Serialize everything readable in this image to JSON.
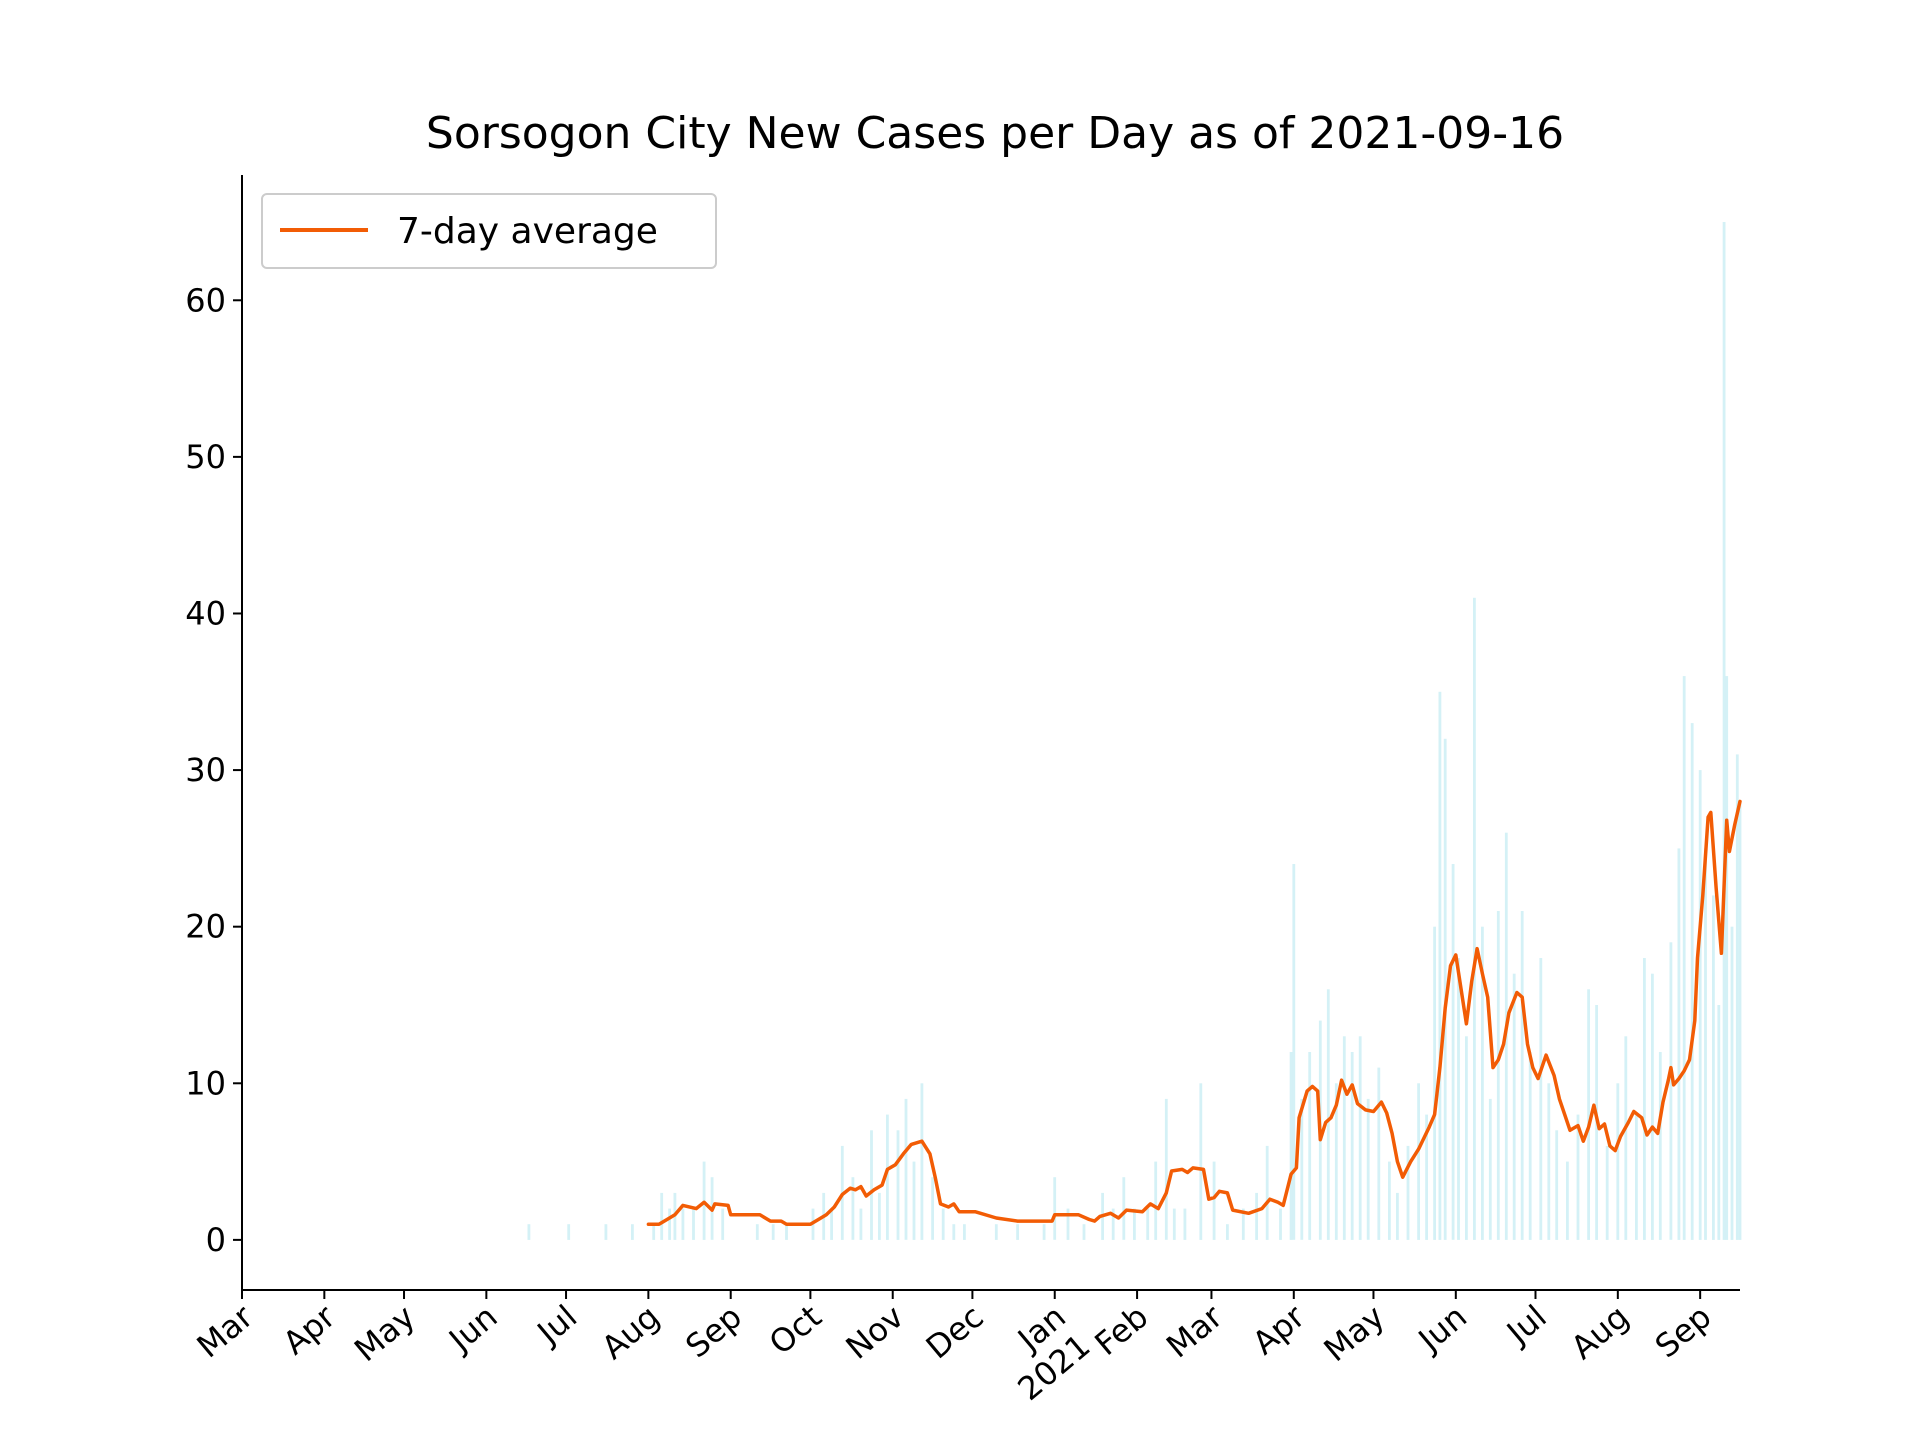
{
  "chart_data": {
    "type": "bar",
    "title": "Sorsogon City New Cases per Day as of 2021-09-16",
    "xlabel": "",
    "ylabel": "",
    "x_range": [
      "2020-03-01",
      "2021-09-16"
    ],
    "ylim": [
      -3.2,
      68
    ],
    "y_ticks": [
      0,
      10,
      20,
      30,
      40,
      50,
      60
    ],
    "x_ticks": [
      {
        "date": "2020-03-01",
        "label": "Mar"
      },
      {
        "date": "2020-04-01",
        "label": "Apr"
      },
      {
        "date": "2020-05-01",
        "label": "May"
      },
      {
        "date": "2020-06-01",
        "label": "Jun"
      },
      {
        "date": "2020-07-01",
        "label": "Jul"
      },
      {
        "date": "2020-08-01",
        "label": "Aug"
      },
      {
        "date": "2020-09-01",
        "label": "Sep"
      },
      {
        "date": "2020-10-01",
        "label": "Oct"
      },
      {
        "date": "2020-11-01",
        "label": "Nov"
      },
      {
        "date": "2020-12-01",
        "label": "Dec"
      },
      {
        "date": "2021-01-01",
        "label": "Jan\n2021"
      },
      {
        "date": "2021-02-01",
        "label": "Feb"
      },
      {
        "date": "2021-03-01",
        "label": "Mar"
      },
      {
        "date": "2021-04-01",
        "label": "Apr"
      },
      {
        "date": "2021-05-01",
        "label": "May"
      },
      {
        "date": "2021-06-01",
        "label": "Jun"
      },
      {
        "date": "2021-07-01",
        "label": "Jul"
      },
      {
        "date": "2021-08-01",
        "label": "Aug"
      },
      {
        "date": "2021-09-01",
        "label": "Sep"
      }
    ],
    "grid": false,
    "legend": {
      "position": "upper-left",
      "entries": [
        "7-day average"
      ]
    },
    "colors": {
      "bars": "#d4f1f6",
      "line": "#f25c05",
      "axis": "#000000",
      "legend_border": "#cccccc"
    },
    "series": [
      {
        "kind": "bar",
        "values": [
          [
            "2020-06-17",
            1
          ],
          [
            "2020-07-02",
            1
          ],
          [
            "2020-07-16",
            1
          ],
          [
            "2020-07-26",
            1
          ],
          [
            "2020-08-03",
            1
          ],
          [
            "2020-08-06",
            3
          ],
          [
            "2020-08-09",
            2
          ],
          [
            "2020-08-11",
            3
          ],
          [
            "2020-08-14",
            2
          ],
          [
            "2020-08-18",
            2
          ],
          [
            "2020-08-22",
            5
          ],
          [
            "2020-08-25",
            4
          ],
          [
            "2020-08-29",
            2
          ],
          [
            "2020-09-11",
            1
          ],
          [
            "2020-09-17",
            1
          ],
          [
            "2020-09-22",
            1
          ],
          [
            "2020-10-02",
            2
          ],
          [
            "2020-10-06",
            3
          ],
          [
            "2020-10-09",
            2
          ],
          [
            "2020-10-13",
            6
          ],
          [
            "2020-10-17",
            4
          ],
          [
            "2020-10-20",
            2
          ],
          [
            "2020-10-24",
            7
          ],
          [
            "2020-10-27",
            3
          ],
          [
            "2020-10-30",
            8
          ],
          [
            "2020-11-03",
            7
          ],
          [
            "2020-11-06",
            9
          ],
          [
            "2020-11-09",
            5
          ],
          [
            "2020-11-12",
            10
          ],
          [
            "2020-11-16",
            4
          ],
          [
            "2020-11-20",
            2
          ],
          [
            "2020-11-24",
            1
          ],
          [
            "2020-11-28",
            1
          ],
          [
            "2020-12-10",
            1
          ],
          [
            "2020-12-18",
            1
          ],
          [
            "2020-12-28",
            1
          ],
          [
            "2021-01-01",
            4
          ],
          [
            "2021-01-06",
            2
          ],
          [
            "2021-01-12",
            1
          ],
          [
            "2021-01-19",
            3
          ],
          [
            "2021-01-23",
            2
          ],
          [
            "2021-01-27",
            4
          ],
          [
            "2021-01-31",
            2
          ],
          [
            "2021-02-05",
            2
          ],
          [
            "2021-02-08",
            5
          ],
          [
            "2021-02-12",
            9
          ],
          [
            "2021-02-15",
            2
          ],
          [
            "2021-02-19",
            2
          ],
          [
            "2021-02-25",
            10
          ],
          [
            "2021-03-02",
            5
          ],
          [
            "2021-03-07",
            1
          ],
          [
            "2021-03-13",
            2
          ],
          [
            "2021-03-18",
            3
          ],
          [
            "2021-03-22",
            6
          ],
          [
            "2021-03-27",
            2
          ],
          [
            "2021-03-31",
            12
          ],
          [
            "2021-04-01",
            24
          ],
          [
            "2021-04-04",
            9
          ],
          [
            "2021-04-07",
            12
          ],
          [
            "2021-04-11",
            14
          ],
          [
            "2021-04-14",
            16
          ],
          [
            "2021-04-17",
            10
          ],
          [
            "2021-04-20",
            13
          ],
          [
            "2021-04-23",
            12
          ],
          [
            "2021-04-26",
            13
          ],
          [
            "2021-04-29",
            9
          ],
          [
            "2021-05-03",
            11
          ],
          [
            "2021-05-07",
            5
          ],
          [
            "2021-05-10",
            3
          ],
          [
            "2021-05-14",
            6
          ],
          [
            "2021-05-18",
            10
          ],
          [
            "2021-05-21",
            8
          ],
          [
            "2021-05-24",
            20
          ],
          [
            "2021-05-26",
            35
          ],
          [
            "2021-05-28",
            32
          ],
          [
            "2021-05-31",
            24
          ],
          [
            "2021-06-02",
            18
          ],
          [
            "2021-06-05",
            13
          ],
          [
            "2021-06-08",
            41
          ],
          [
            "2021-06-11",
            20
          ],
          [
            "2021-06-14",
            9
          ],
          [
            "2021-06-17",
            21
          ],
          [
            "2021-06-20",
            26
          ],
          [
            "2021-06-23",
            17
          ],
          [
            "2021-06-26",
            21
          ],
          [
            "2021-06-29",
            12
          ],
          [
            "2021-07-03",
            18
          ],
          [
            "2021-07-06",
            10
          ],
          [
            "2021-07-09",
            7
          ],
          [
            "2021-07-13",
            5
          ],
          [
            "2021-07-17",
            8
          ],
          [
            "2021-07-21",
            16
          ],
          [
            "2021-07-24",
            15
          ],
          [
            "2021-07-28",
            6
          ],
          [
            "2021-08-01",
            10
          ],
          [
            "2021-08-04",
            13
          ],
          [
            "2021-08-08",
            8
          ],
          [
            "2021-08-11",
            18
          ],
          [
            "2021-08-14",
            17
          ],
          [
            "2021-08-17",
            12
          ],
          [
            "2021-08-21",
            19
          ],
          [
            "2021-08-24",
            25
          ],
          [
            "2021-08-26",
            36
          ],
          [
            "2021-08-29",
            33
          ],
          [
            "2021-09-01",
            30
          ],
          [
            "2021-09-03",
            25
          ],
          [
            "2021-09-06",
            22
          ],
          [
            "2021-09-08",
            15
          ],
          [
            "2021-09-10",
            65
          ],
          [
            "2021-09-11",
            36
          ],
          [
            "2021-09-13",
            20
          ],
          [
            "2021-09-15",
            31
          ],
          [
            "2021-09-16",
            28
          ]
        ]
      },
      {
        "kind": "line",
        "name": "7-day average",
        "values": [
          [
            "2020-08-01",
            1.0
          ],
          [
            "2020-08-05",
            1.0
          ],
          [
            "2020-08-08",
            1.3
          ],
          [
            "2020-08-11",
            1.6
          ],
          [
            "2020-08-14",
            2.2
          ],
          [
            "2020-08-19",
            2.0
          ],
          [
            "2020-08-22",
            2.4
          ],
          [
            "2020-08-25",
            1.9
          ],
          [
            "2020-08-26",
            2.3
          ],
          [
            "2020-08-31",
            2.2
          ],
          [
            "2020-09-01",
            1.6
          ],
          [
            "2020-09-12",
            1.6
          ],
          [
            "2020-09-16",
            1.2
          ],
          [
            "2020-09-20",
            1.2
          ],
          [
            "2020-09-22",
            1.0
          ],
          [
            "2020-10-01",
            1.0
          ],
          [
            "2020-10-04",
            1.3
          ],
          [
            "2020-10-07",
            1.6
          ],
          [
            "2020-10-10",
            2.1
          ],
          [
            "2020-10-13",
            2.9
          ],
          [
            "2020-10-16",
            3.3
          ],
          [
            "2020-10-18",
            3.2
          ],
          [
            "2020-10-20",
            3.4
          ],
          [
            "2020-10-22",
            2.8
          ],
          [
            "2020-10-25",
            3.2
          ],
          [
            "2020-10-28",
            3.5
          ],
          [
            "2020-10-30",
            4.5
          ],
          [
            "2020-11-02",
            4.8
          ],
          [
            "2020-11-05",
            5.5
          ],
          [
            "2020-11-08",
            6.1
          ],
          [
            "2020-11-12",
            6.3
          ],
          [
            "2020-11-15",
            5.5
          ],
          [
            "2020-11-17",
            4.0
          ],
          [
            "2020-11-19",
            2.3
          ],
          [
            "2020-11-22",
            2.1
          ],
          [
            "2020-11-24",
            2.3
          ],
          [
            "2020-11-26",
            1.8
          ],
          [
            "2020-12-02",
            1.8
          ],
          [
            "2020-12-10",
            1.4
          ],
          [
            "2020-12-18",
            1.2
          ],
          [
            "2020-12-31",
            1.2
          ],
          [
            "2021-01-01",
            1.6
          ],
          [
            "2021-01-10",
            1.6
          ],
          [
            "2021-01-14",
            1.3
          ],
          [
            "2021-01-16",
            1.2
          ],
          [
            "2021-01-18",
            1.5
          ],
          [
            "2021-01-22",
            1.7
          ],
          [
            "2021-01-25",
            1.4
          ],
          [
            "2021-01-28",
            1.9
          ],
          [
            "2021-02-03",
            1.8
          ],
          [
            "2021-02-06",
            2.3
          ],
          [
            "2021-02-09",
            2.0
          ],
          [
            "2021-02-12",
            3.0
          ],
          [
            "2021-02-14",
            4.4
          ],
          [
            "2021-02-18",
            4.5
          ],
          [
            "2021-02-20",
            4.3
          ],
          [
            "2021-02-22",
            4.6
          ],
          [
            "2021-02-26",
            4.5
          ],
          [
            "2021-02-28",
            2.6
          ],
          [
            "2021-03-02",
            2.7
          ],
          [
            "2021-03-04",
            3.1
          ],
          [
            "2021-03-07",
            3.0
          ],
          [
            "2021-03-09",
            1.9
          ],
          [
            "2021-03-15",
            1.7
          ],
          [
            "2021-03-20",
            2.0
          ],
          [
            "2021-03-23",
            2.6
          ],
          [
            "2021-03-26",
            2.4
          ],
          [
            "2021-03-28",
            2.2
          ],
          [
            "2021-03-31",
            4.2
          ],
          [
            "2021-04-02",
            4.6
          ],
          [
            "2021-04-03",
            7.8
          ],
          [
            "2021-04-06",
            9.5
          ],
          [
            "2021-04-08",
            9.8
          ],
          [
            "2021-04-10",
            9.5
          ],
          [
            "2021-04-11",
            6.4
          ],
          [
            "2021-04-13",
            7.5
          ],
          [
            "2021-04-15",
            7.8
          ],
          [
            "2021-04-17",
            8.6
          ],
          [
            "2021-04-19",
            10.2
          ],
          [
            "2021-04-21",
            9.3
          ],
          [
            "2021-04-23",
            9.9
          ],
          [
            "2021-04-25",
            8.7
          ],
          [
            "2021-04-28",
            8.3
          ],
          [
            "2021-05-01",
            8.2
          ],
          [
            "2021-05-04",
            8.8
          ],
          [
            "2021-05-06",
            8.1
          ],
          [
            "2021-05-08",
            6.8
          ],
          [
            "2021-05-10",
            5.0
          ],
          [
            "2021-05-12",
            4.0
          ],
          [
            "2021-05-15",
            5.0
          ],
          [
            "2021-05-18",
            5.8
          ],
          [
            "2021-05-20",
            6.5
          ],
          [
            "2021-05-22",
            7.2
          ],
          [
            "2021-05-24",
            8.0
          ],
          [
            "2021-05-26",
            11.0
          ],
          [
            "2021-05-28",
            14.8
          ],
          [
            "2021-05-30",
            17.5
          ],
          [
            "2021-06-01",
            18.2
          ],
          [
            "2021-06-03",
            16.0
          ],
          [
            "2021-06-05",
            13.8
          ],
          [
            "2021-06-07",
            16.5
          ],
          [
            "2021-06-09",
            18.6
          ],
          [
            "2021-06-11",
            17.0
          ],
          [
            "2021-06-13",
            15.5
          ],
          [
            "2021-06-15",
            11.0
          ],
          [
            "2021-06-17",
            11.5
          ],
          [
            "2021-06-19",
            12.5
          ],
          [
            "2021-06-21",
            14.5
          ],
          [
            "2021-06-24",
            15.8
          ],
          [
            "2021-06-26",
            15.5
          ],
          [
            "2021-06-28",
            12.5
          ],
          [
            "2021-06-30",
            11.0
          ],
          [
            "2021-07-02",
            10.3
          ],
          [
            "2021-07-05",
            11.8
          ],
          [
            "2021-07-08",
            10.5
          ],
          [
            "2021-07-10",
            9.0
          ],
          [
            "2021-07-12",
            8.0
          ],
          [
            "2021-07-14",
            7.0
          ],
          [
            "2021-07-17",
            7.3
          ],
          [
            "2021-07-19",
            6.3
          ],
          [
            "2021-07-21",
            7.2
          ],
          [
            "2021-07-23",
            8.6
          ],
          [
            "2021-07-25",
            7.1
          ],
          [
            "2021-07-27",
            7.4
          ],
          [
            "2021-07-29",
            6.0
          ],
          [
            "2021-07-31",
            5.7
          ],
          [
            "2021-08-02",
            6.6
          ],
          [
            "2021-08-05",
            7.5
          ],
          [
            "2021-08-07",
            8.2
          ],
          [
            "2021-08-10",
            7.8
          ],
          [
            "2021-08-12",
            6.7
          ],
          [
            "2021-08-14",
            7.2
          ],
          [
            "2021-08-16",
            6.8
          ],
          [
            "2021-08-18",
            8.8
          ],
          [
            "2021-08-20",
            10.2
          ],
          [
            "2021-08-21",
            11.0
          ],
          [
            "2021-08-22",
            9.9
          ],
          [
            "2021-08-24",
            10.3
          ],
          [
            "2021-08-26",
            10.8
          ],
          [
            "2021-08-28",
            11.5
          ],
          [
            "2021-08-30",
            14.0
          ],
          [
            "2021-08-31",
            18.0
          ],
          [
            "2021-09-02",
            22.0
          ],
          [
            "2021-09-04",
            27.0
          ],
          [
            "2021-09-05",
            27.3
          ],
          [
            "2021-09-07",
            22.5
          ],
          [
            "2021-09-09",
            18.3
          ],
          [
            "2021-09-11",
            26.8
          ],
          [
            "2021-09-12",
            24.8
          ],
          [
            "2021-09-14",
            26.5
          ],
          [
            "2021-09-16",
            28.0
          ]
        ]
      }
    ]
  }
}
